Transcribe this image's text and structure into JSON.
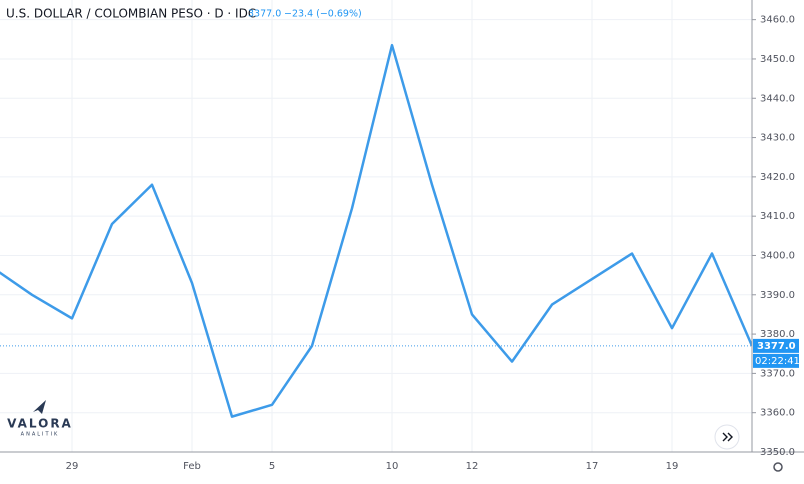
{
  "chart_data": {
    "type": "line",
    "title": "U.S. DOLLAR / COLOMBIAN PESO · D · IDC",
    "change": "−23.4 (−0.69%)",
    "last_price": {
      "value": 3377,
      "label": "3377.0"
    },
    "time": "02:22:41",
    "logo": "VALORA",
    "logo_sub": "ANALITIK",
    "categories": [
      null,
      null,
      "29",
      null,
      null,
      "Feb",
      null,
      "5",
      null,
      null,
      "10",
      null,
      "12",
      null,
      null,
      "17",
      null,
      "19",
      null,
      null
    ],
    "series": [
      {
        "name": "USD/COP",
        "color": "#3d9be9",
        "values": [
          3397,
          3390,
          3384,
          3408,
          3418,
          3393,
          3359,
          3362,
          3377,
          3412,
          3453.5,
          3418,
          3385,
          3373,
          3387.5,
          3394,
          3400.5,
          3381.5,
          3400.5,
          3377
        ]
      }
    ],
    "ylim": [
      3350,
      3465
    ],
    "yticks": [
      {
        "value": 3350,
        "label": "3350.0"
      },
      {
        "value": 3360,
        "label": "3360.0"
      },
      {
        "value": 3370,
        "label": "3370.0"
      },
      {
        "value": 3380,
        "label": "3380.0"
      },
      {
        "value": 3390,
        "label": "3390.0"
      },
      {
        "value": 3400,
        "label": "3400.0"
      },
      {
        "value": 3410,
        "label": "3410.0"
      },
      {
        "value": 3420,
        "label": "3420.0"
      },
      {
        "value": 3430,
        "label": "3430.0"
      },
      {
        "value": 3440,
        "label": "3440.0"
      },
      {
        "value": 3450,
        "label": "3450.0"
      },
      {
        "value": 3460,
        "label": "3460.0"
      }
    ],
    "grid": true
  }
}
